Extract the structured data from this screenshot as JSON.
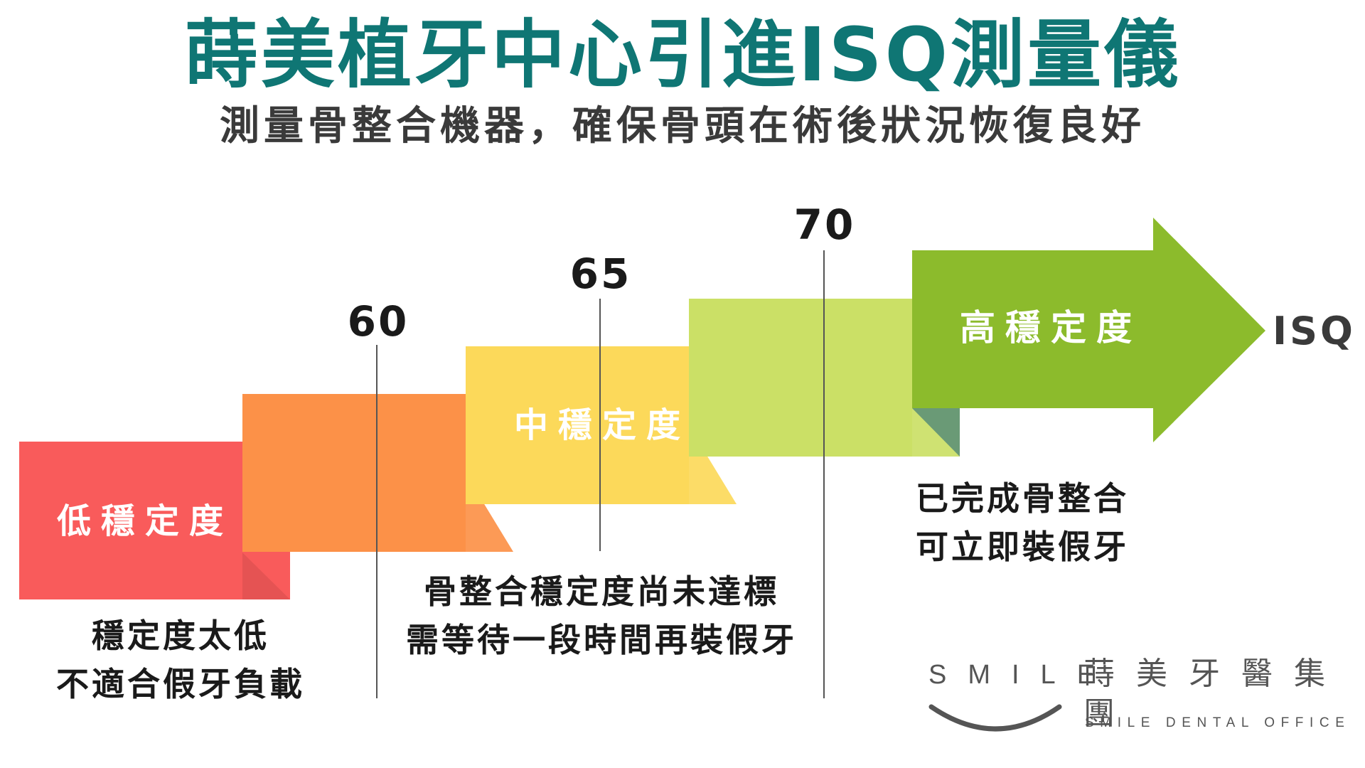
{
  "header": {
    "title": "蒔美植牙中心引進ISQ測量儀",
    "subtitle": "測量骨整合機器，確保骨頭在術後狀況恢復良好"
  },
  "colors": {
    "title": "#0f7674",
    "step1": "#f95b5b",
    "step2": "#fc9148",
    "step3": "#fcd95a",
    "step4": "#cbe066",
    "arrow": "#8cbb2c",
    "fold": "#6a9a76"
  },
  "chart_data": {
    "type": "diagram",
    "axis_label": "ISQ",
    "thresholds": [
      60,
      65,
      70
    ],
    "threshold_labels": [
      "60",
      "65",
      "70"
    ],
    "levels": [
      {
        "label": "低穩定度",
        "range": [
          null,
          60
        ]
      },
      {
        "label": "中穩定度",
        "range": [
          60,
          70
        ]
      },
      {
        "label": "高穩定度",
        "range": [
          70,
          null
        ]
      }
    ],
    "notes": {
      "low": [
        "穩定度太低",
        "不適合假牙負載"
      ],
      "mid": [
        "骨整合穩定度尚未達標",
        "需等待一段時間再裝假牙"
      ],
      "high": [
        "已完成骨整合",
        "可立即裝假牙"
      ]
    }
  },
  "logo": {
    "word": "SMILE",
    "chinese": "蒔美牙醫集團",
    "english": "SMILE DENTAL OFFICE"
  }
}
